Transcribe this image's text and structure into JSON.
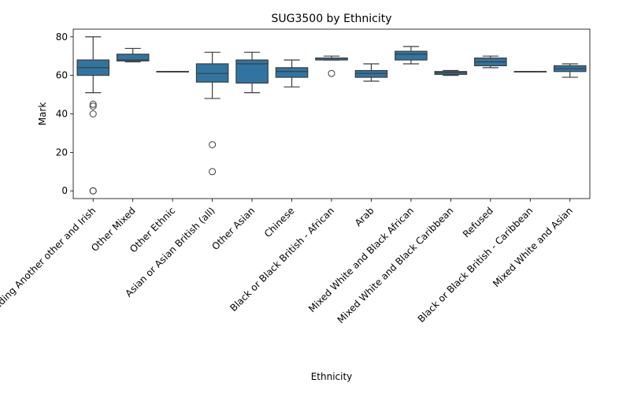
{
  "chart_data": {
    "type": "box",
    "title": "SUG3500 by Ethnicity",
    "xlabel": "Ethnicity",
    "ylabel": "Mark",
    "ylim": [
      -4,
      84
    ],
    "yticks": [
      0,
      20,
      40,
      60,
      80
    ],
    "box_color": "#3274a1",
    "categories": [
      "White including Another other and Irish",
      "Other Mixed",
      "Other Ethnic",
      "Asian or Asian British (all)",
      "Other Asian",
      "Chinese",
      "Black or Black British - African",
      "Arab",
      "Mixed White and Black African",
      "Mixed White and Black Caribbean",
      "Refused",
      "Black or Black British - Caribbean",
      "Mixed White and Asian"
    ],
    "boxes": [
      {
        "whisker_low": 51,
        "q1": 60,
        "median": 64,
        "q3": 68,
        "whisker_high": 80,
        "outliers": [
          45,
          44,
          40,
          0,
          0
        ]
      },
      {
        "whisker_low": 67,
        "q1": 67.5,
        "median": 68,
        "q3": 71,
        "whisker_high": 74,
        "outliers": []
      },
      {
        "whisker_low": 62,
        "q1": 62,
        "median": 62,
        "q3": 62,
        "whisker_high": 62,
        "outliers": []
      },
      {
        "whisker_low": 48,
        "q1": 56.5,
        "median": 61,
        "q3": 66,
        "whisker_high": 72,
        "outliers": [
          24,
          10
        ]
      },
      {
        "whisker_low": 51,
        "q1": 56,
        "median": 66,
        "q3": 68,
        "whisker_high": 72,
        "outliers": []
      },
      {
        "whisker_low": 54,
        "q1": 59,
        "median": 62,
        "q3": 64,
        "whisker_high": 68,
        "outliers": []
      },
      {
        "whisker_low": 68,
        "q1": 68,
        "median": 69,
        "q3": 69,
        "whisker_high": 70,
        "outliers": [
          61
        ]
      },
      {
        "whisker_low": 57,
        "q1": 59,
        "median": 61,
        "q3": 62.5,
        "whisker_high": 66,
        "outliers": []
      },
      {
        "whisker_low": 66,
        "q1": 68,
        "median": 71,
        "q3": 72.5,
        "whisker_high": 75,
        "outliers": []
      },
      {
        "whisker_low": 60,
        "q1": 60.5,
        "median": 61.5,
        "q3": 62,
        "whisker_high": 62.5,
        "outliers": []
      },
      {
        "whisker_low": 64,
        "q1": 65,
        "median": 67,
        "q3": 69,
        "whisker_high": 70,
        "outliers": []
      },
      {
        "whisker_low": 62,
        "q1": 62,
        "median": 62,
        "q3": 62,
        "whisker_high": 62,
        "outliers": []
      },
      {
        "whisker_low": 59,
        "q1": 62,
        "median": 63.5,
        "q3": 65,
        "whisker_high": 66,
        "outliers": []
      }
    ]
  }
}
